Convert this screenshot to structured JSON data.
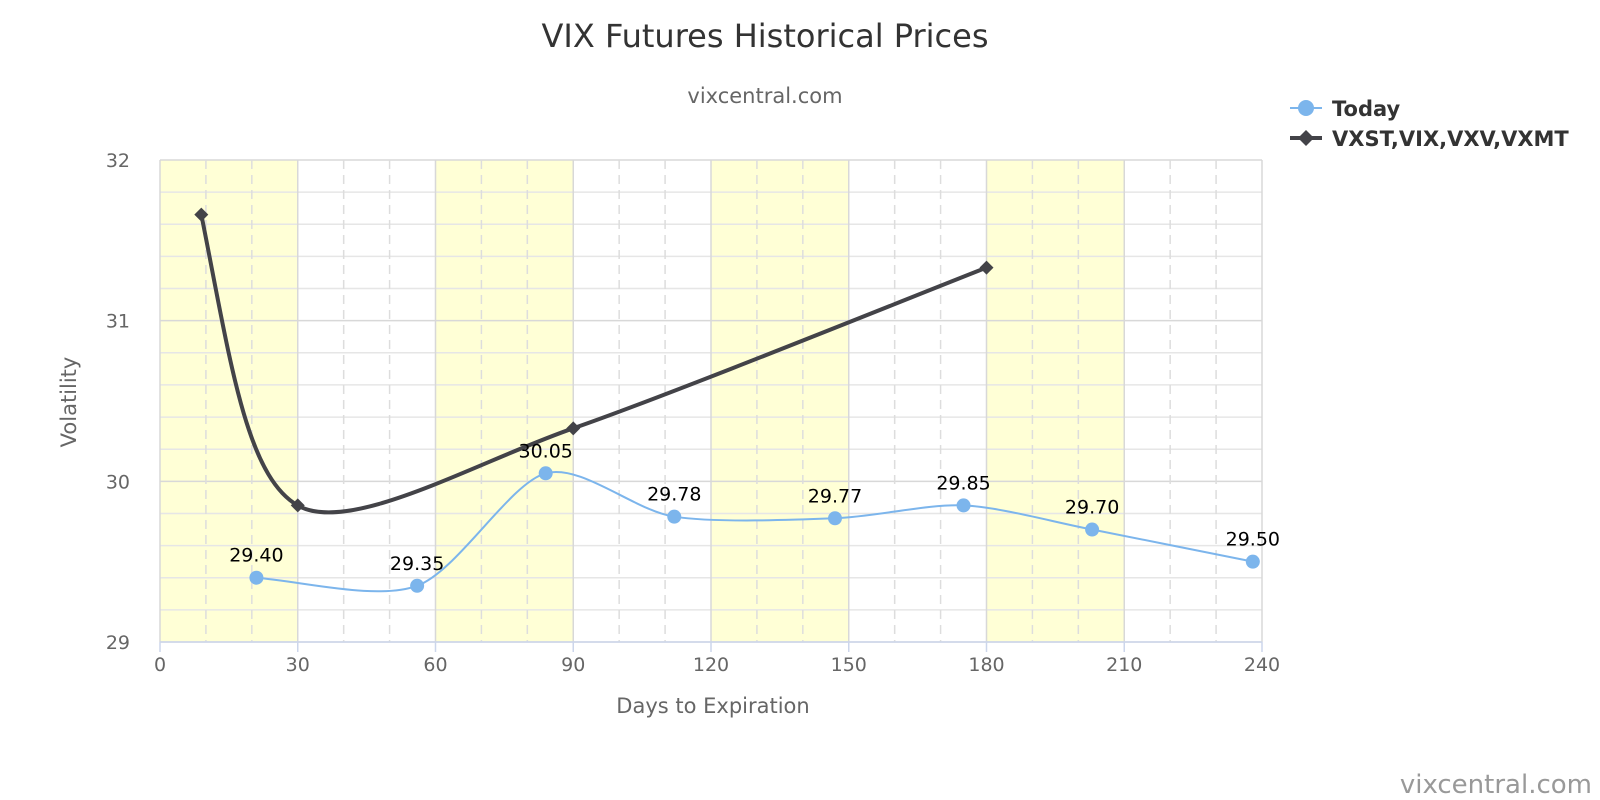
{
  "chart_data": {
    "type": "line",
    "title": "VIX Futures Historical Prices",
    "subtitle": "vixcentral.com",
    "xlabel": "Days to Expiration",
    "ylabel": "Volatility",
    "xlim": [
      0,
      240
    ],
    "ylim": [
      29,
      32
    ],
    "x_ticks": [
      "0",
      "30",
      "60",
      "90",
      "120",
      "150",
      "180",
      "210",
      "240"
    ],
    "y_ticks": [
      "29",
      "30",
      "31",
      "32"
    ],
    "bands": [
      [
        0,
        30
      ],
      [
        60,
        90
      ],
      [
        120,
        150
      ],
      [
        180,
        210
      ]
    ],
    "grid": true,
    "legend_position": "top-right",
    "series": [
      {
        "name": "Today",
        "color": "#7cb5ec",
        "marker": "circle",
        "x": [
          21,
          56,
          84,
          112,
          147,
          175,
          203,
          238
        ],
        "y": [
          29.4,
          29.35,
          30.05,
          29.78,
          29.77,
          29.85,
          29.7,
          29.5
        ],
        "labels": [
          "29.40",
          "29.35",
          "30.05",
          "29.78",
          "29.77",
          "29.85",
          "29.70",
          "29.50"
        ]
      },
      {
        "name": "VXST,VIX,VXV,VXMT",
        "color": "#434348",
        "marker": "diamond",
        "x": [
          9,
          30,
          90,
          180
        ],
        "y": [
          31.66,
          29.85,
          30.33,
          31.33
        ]
      }
    ],
    "credit": "vixcentral.com"
  }
}
